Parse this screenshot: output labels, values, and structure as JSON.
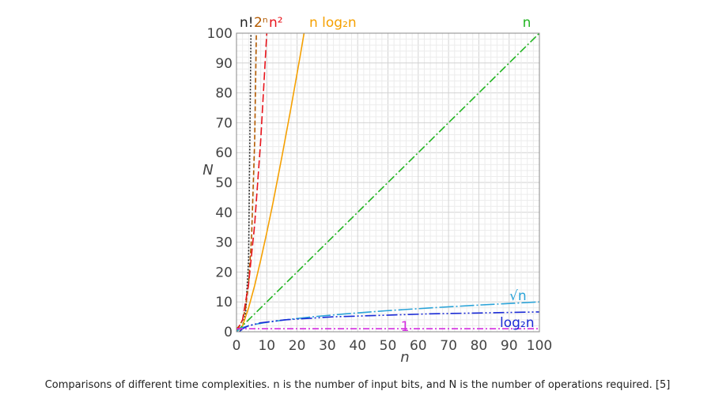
{
  "chart_data": {
    "type": "line",
    "xlabel": "n",
    "ylabel": "N",
    "xlim": [
      0,
      100
    ],
    "ylim": [
      0,
      100
    ],
    "x_ticks": [
      "0",
      "10",
      "20",
      "30",
      "40",
      "50",
      "60",
      "70",
      "80",
      "90",
      "100"
    ],
    "y_ticks": [
      "0",
      "10",
      "20",
      "30",
      "40",
      "50",
      "60",
      "70",
      "80",
      "90",
      "100"
    ],
    "grid": true,
    "series": [
      {
        "name": "n!",
        "color": "#222222",
        "dash": "2,2",
        "x": [
          1,
          2,
          3,
          4,
          5
        ],
        "y": [
          1,
          2,
          6,
          24,
          120
        ]
      },
      {
        "name": "2ⁿ",
        "color": "#b35a00",
        "dash": "6,3",
        "x": [
          0,
          1,
          2,
          3,
          4,
          5,
          6,
          7
        ],
        "y": [
          1,
          2,
          4,
          8,
          16,
          32,
          64,
          128
        ]
      },
      {
        "name": "n²",
        "color": "#e8141b",
        "dash": "10,4",
        "x": [
          0,
          2,
          4,
          6,
          8,
          10,
          11
        ],
        "y": [
          0,
          4,
          16,
          36,
          64,
          100,
          121
        ]
      },
      {
        "name": "n log₂n",
        "color": "#f5a000",
        "dash": "",
        "x": [
          1,
          2,
          4,
          6,
          8,
          10,
          12,
          15,
          18,
          21,
          24
        ],
        "y": [
          0,
          2,
          8,
          15.5,
          24,
          33.2,
          43,
          58.6,
          75,
          92.2,
          110
        ]
      },
      {
        "name": "n",
        "color": "#22b422",
        "dash": "10,3,2,3",
        "x": [
          0,
          100
        ],
        "y": [
          0,
          100
        ]
      },
      {
        "name": "√n",
        "color": "#2aa3d8",
        "dash": "18,3,2,3",
        "x": [
          0,
          1,
          2,
          4,
          6,
          9,
          16,
          25,
          36,
          49,
          64,
          81,
          100
        ],
        "y": [
          0,
          1,
          1.41,
          2,
          2.45,
          3,
          4,
          5,
          6,
          7,
          8,
          9,
          10
        ]
      },
      {
        "name": "log₂n",
        "color": "#1a2bd6",
        "dash": "14,3,2,3,2,3",
        "x": [
          1,
          2,
          4,
          8,
          16,
          32,
          64,
          100
        ],
        "y": [
          0,
          1,
          2,
          3,
          4,
          5,
          6,
          6.64
        ]
      },
      {
        "name": "1",
        "color": "#d42ee0",
        "dash": "8,3,2,3",
        "x": [
          0,
          100
        ],
        "y": [
          1,
          1
        ]
      }
    ]
  },
  "caption": "Comparisons of different time complexities. n is the number of input bits, and N is the number of operations required. [5]"
}
